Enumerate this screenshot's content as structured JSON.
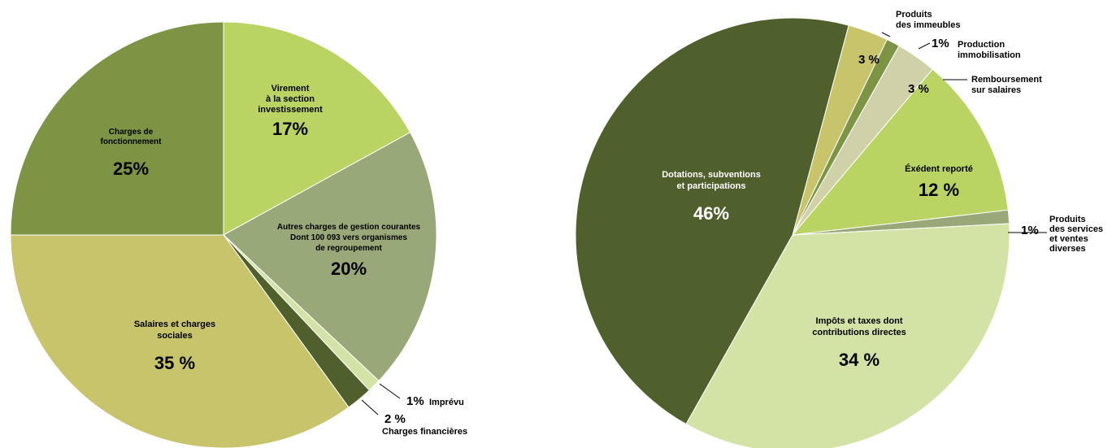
{
  "chart_data": [
    {
      "type": "pie",
      "slices": [
        {
          "label": [
            "Virement",
            "à la section",
            "investissement"
          ],
          "value": 17,
          "pct_text": "17%",
          "color": "#bad464"
        },
        {
          "label": [
            "Autres charges de gestion courantes",
            "Dont 100 093 vers organismes",
            "de regroupement"
          ],
          "value": 20,
          "pct_text": "20%",
          "color": "#98a878"
        },
        {
          "label": [
            "Imprévu"
          ],
          "value": 1,
          "pct_text": "1%",
          "color": "#d3e3a6"
        },
        {
          "label": [
            "Charges financières"
          ],
          "value": 2,
          "pct_text": "2 %",
          "color": "#4f602c"
        },
        {
          "label": [
            "Salaires et charges",
            "sociales"
          ],
          "value": 35,
          "pct_text": "35 %",
          "color": "#c7c46c"
        },
        {
          "label": [
            "Charges de",
            "fonctionnement"
          ],
          "value": 25,
          "pct_text": "25%",
          "color": "#7c9444"
        }
      ]
    },
    {
      "type": "pie",
      "slices": [
        {
          "label": [
            "Produits",
            "des immeubles"
          ],
          "value": 3,
          "pct_text": "3 %",
          "color": "#c7c46c"
        },
        {
          "label": [
            "Production",
            "immobilisation"
          ],
          "value": 1,
          "pct_text": "1%",
          "color": "#7c9444"
        },
        {
          "label": [
            "Remboursement",
            "sur salaires"
          ],
          "value": 3,
          "pct_text": "3 %",
          "color": "#d1d1a9"
        },
        {
          "label": [
            "Éxédent reporté"
          ],
          "value": 12,
          "pct_text": "12 %",
          "color": "#bad464"
        },
        {
          "label": [
            "Produits",
            "des services",
            "et ventes",
            "diverses"
          ],
          "value": 1,
          "pct_text": "1%",
          "color": "#98a878"
        },
        {
          "label": [
            "Impôts et taxes dont",
            "contributions directes"
          ],
          "value": 34,
          "pct_text": "34 %",
          "color": "#d3e3a6"
        },
        {
          "label": [
            "Dotations, subventions",
            "et participations"
          ],
          "value": 46,
          "pct_text": "46%",
          "color": "#4f602c"
        }
      ]
    }
  ]
}
